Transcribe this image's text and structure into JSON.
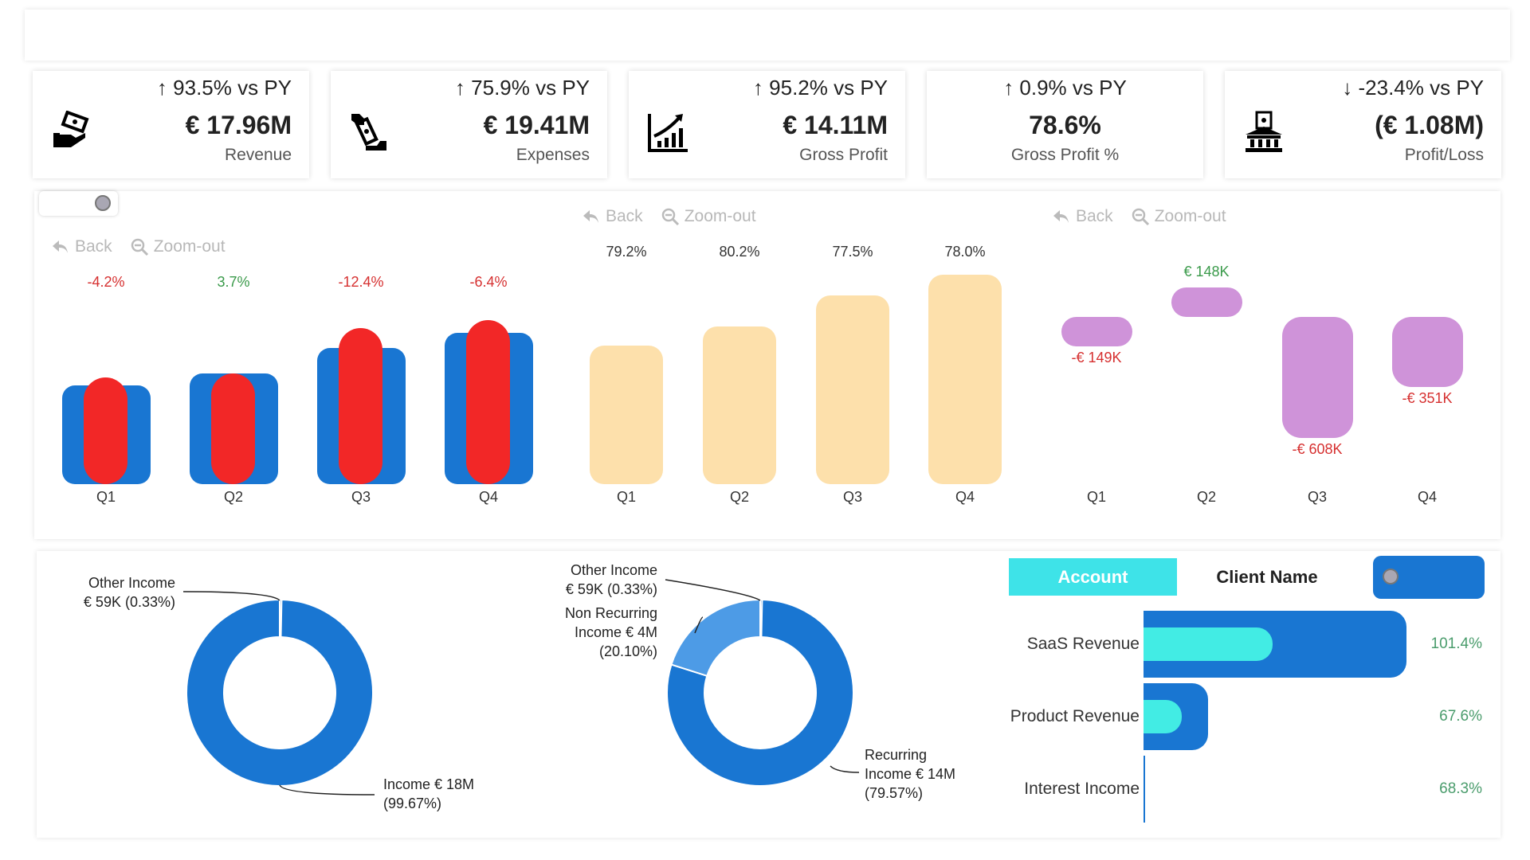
{
  "kpis": [
    {
      "trend": "↑ 93.5% vs PY",
      "value": "€ 17.96M",
      "label": "Revenue",
      "icon": "hand-money-icon"
    },
    {
      "trend": "↑ 75.9% vs PY",
      "value": "€ 19.41M",
      "label": "Expenses",
      "icon": "pay-money-icon"
    },
    {
      "trend": "↑ 95.2% vs PY",
      "value": "€ 14.11M",
      "label": "Gross Profit",
      "icon": "growth-chart-icon"
    },
    {
      "trend": "↑ 0.9% vs PY",
      "value": "78.6%",
      "label": "Gross Profit %",
      "icon": ""
    },
    {
      "trend": "↓ -23.4% vs PY",
      "value": "(€ 1.08M)",
      "label": "Profit/Loss",
      "icon": "bank-icon"
    }
  ],
  "nav": {
    "back": "Back",
    "zoom_out": "Zoom-out"
  },
  "colors": {
    "blue": "#1976d2",
    "red": "#f22727",
    "peach": "#fde0ab",
    "purple": "#cf93d9",
    "cyan": "#42ece4",
    "light_blue": "#4d9be6",
    "pos": "#3a9a4a",
    "neg": "#d63030"
  },
  "chart_data": [
    {
      "type": "bar",
      "categories": [
        "Q1",
        "Q2",
        "Q3",
        "Q4"
      ],
      "series": [
        {
          "values": [
            3.57,
            4.0,
            4.92,
            5.47
          ],
          "color": "#1976d2"
        },
        {
          "values": [
            3.85,
            4.0,
            5.64,
            5.92
          ],
          "color": "#f22727"
        }
      ],
      "labels": [
        "-4.2%",
        "3.7%",
        "-12.4%",
        "-6.4%"
      ],
      "label_colors": [
        "neg",
        "pos",
        "neg",
        "neg"
      ],
      "ylim": [
        0,
        6.5
      ],
      "unit": "€M"
    },
    {
      "type": "bar",
      "categories": [
        "Q1",
        "Q2",
        "Q3",
        "Q4"
      ],
      "values": [
        2.82,
        3.2,
        3.84,
        4.25
      ],
      "labels": [
        "79.2%",
        "80.2%",
        "77.5%",
        "78.0%"
      ],
      "ylim": [
        0,
        6.5
      ],
      "unit": "€M"
    },
    {
      "type": "bar",
      "categories": [
        "Q1",
        "Q2",
        "Q3",
        "Q4"
      ],
      "values": [
        -149,
        148,
        -608,
        -351
      ],
      "labels": [
        "-€ 149K",
        "€ 148K",
        "-€ 608K",
        "-€ 351K"
      ],
      "unit": "€K"
    },
    {
      "type": "pie",
      "slices": [
        {
          "label": [
            "Other Income",
            "€ 59K (0.33%)"
          ],
          "value": 0.33
        },
        {
          "label": [
            "Income € 18M",
            "(99.67%)"
          ],
          "value": 99.67
        }
      ]
    },
    {
      "type": "pie",
      "slices": [
        {
          "label": [
            "Other Income",
            "€ 59K (0.33%)"
          ],
          "value": 0.33
        },
        {
          "label": [
            "Non Recurring",
            "Income € 4M",
            "(20.10%)"
          ],
          "value": 20.1
        },
        {
          "label": [
            "Recurring",
            "Income € 14M",
            "(79.57%)"
          ],
          "value": 79.57
        }
      ]
    },
    {
      "type": "bar",
      "orientation": "horizontal",
      "categories": [
        "SaaS Revenue",
        "Product Revenue",
        "Interest Income"
      ],
      "outer": [
        1.0,
        0.245,
        0.005
      ],
      "inner": [
        0.49,
        0.145,
        0
      ],
      "labels": [
        "101.4%",
        "67.6%",
        "68.3%"
      ]
    }
  ],
  "slicer": {
    "account": "Account",
    "client_name": "Client Name"
  }
}
